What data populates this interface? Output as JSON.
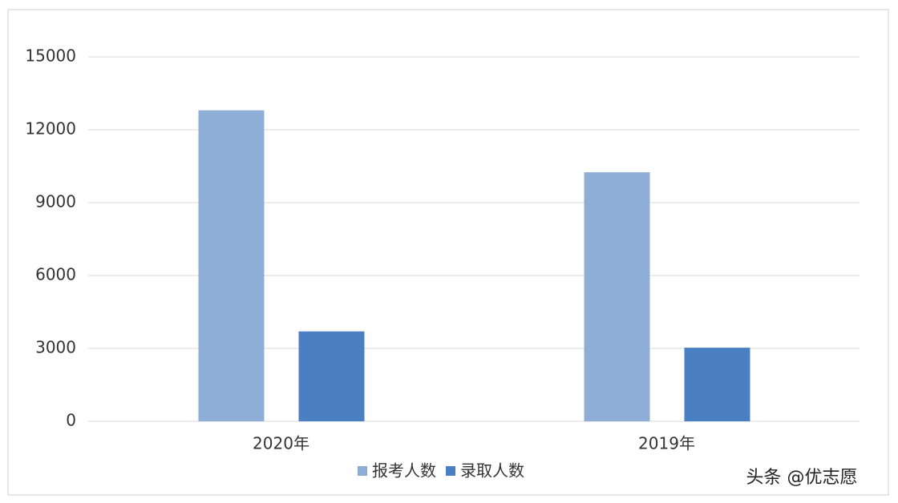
{
  "chart_data": {
    "type": "bar",
    "categories": [
      "2020年",
      "2019年"
    ],
    "series": [
      {
        "name": "报考人数",
        "color": "#8eaed8",
        "values": [
          12800,
          10250
        ]
      },
      {
        "name": "录取人数",
        "color": "#4a7fc1",
        "values": [
          3700,
          3030
        ]
      }
    ],
    "ylim": [
      0,
      15000
    ],
    "yticks": [
      0,
      3000,
      6000,
      9000,
      12000,
      15000
    ],
    "grid": true,
    "legend": "bottom",
    "annotation": "头条 @优志愿"
  }
}
